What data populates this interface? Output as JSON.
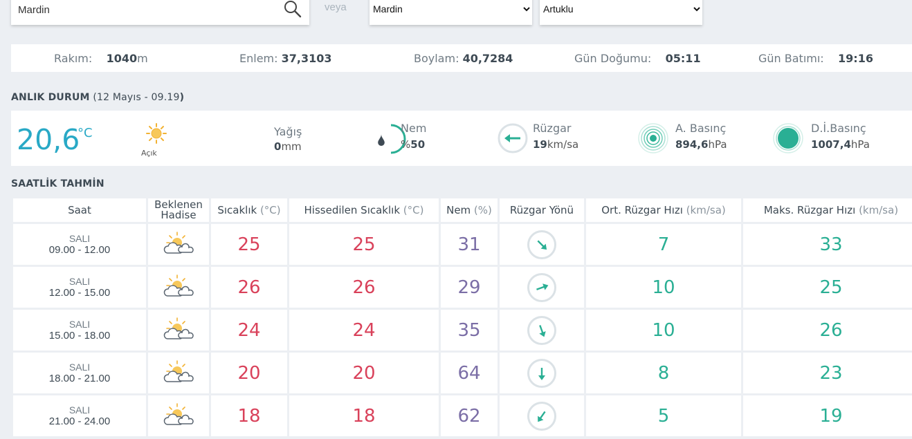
{
  "search": {
    "value": "Mardin"
  },
  "veya": "veya",
  "province_select": {
    "selected": "Mardin"
  },
  "district_select": {
    "selected": "Artuklu"
  },
  "info": {
    "altitude_label": "Rakım:",
    "altitude_value": "1040",
    "altitude_unit": "m",
    "latitude_label": "Enlem:",
    "latitude_value": "37,3103",
    "longitude_label": "Boylam:",
    "longitude_value": "40,7284",
    "sunrise_label": "Gün Doğumu:",
    "sunrise_value": "05:11",
    "sunset_label": "Gün Batımı:",
    "sunset_value": "19:16"
  },
  "current": {
    "title": "ANLIK DURUM",
    "subtitle_open": " (",
    "subtitle_date": "12 Mayıs - 09.19",
    "subtitle_close": ")",
    "temperature": "20,6",
    "temperature_unit": "°C",
    "condition": "Açık",
    "precip_label": "Yağış",
    "precip_value": "0",
    "precip_unit": "mm",
    "humidity_label": "Nem",
    "humidity_prefix": "%",
    "humidity_value": "50",
    "humidity_level": 50,
    "wind_label": "Rüzgar",
    "wind_value": "19",
    "wind_unit": "km/sa",
    "pressure_label": "A. Basınç",
    "pressure_value": "894,6",
    "pressure_unit": "hPa",
    "sea_pressure_label": "D.İ.Basınç",
    "sea_pressure_value": "1007,4",
    "sea_pressure_unit": "hPa"
  },
  "forecast": {
    "title": "SAATLİK TAHMİN",
    "headers": {
      "time": "Saat",
      "event_line1": "Beklenen",
      "event_line2": "Hadise",
      "temp": "Sıcaklık",
      "temp_unit": " (°C)",
      "feels": "Hissedilen Sıcaklık",
      "feels_unit": " (°C)",
      "humidity": "Nem",
      "humidity_unit": " (%)",
      "wind_dir": "Rüzgar Yönü",
      "wind_avg": "Ort. Rüzgar Hızı",
      "wind_avg_unit": " (km/sa)",
      "wind_max": "Maks. Rüzgar Hızı",
      "wind_max_unit": " (km/sa)"
    },
    "rows": [
      {
        "day": "SALI",
        "range": "09.00 - 12.00",
        "temp": "25",
        "feels": "25",
        "humidity": "31",
        "wind_deg": 135,
        "wind_avg": "7",
        "wind_max": "33",
        "icon": "partly-cloudy-icon"
      },
      {
        "day": "SALI",
        "range": "12.00 - 15.00",
        "temp": "26",
        "feels": "26",
        "humidity": "29",
        "wind_deg": 70,
        "wind_avg": "10",
        "wind_max": "25",
        "icon": "partly-cloudy-icon"
      },
      {
        "day": "SALI",
        "range": "15.00 - 18.00",
        "temp": "24",
        "feels": "24",
        "humidity": "35",
        "wind_deg": 160,
        "wind_avg": "10",
        "wind_max": "26",
        "icon": "partly-cloudy-icon"
      },
      {
        "day": "SALI",
        "range": "18.00 - 21.00",
        "temp": "20",
        "feels": "20",
        "humidity": "64",
        "wind_deg": 180,
        "wind_avg": "8",
        "wind_max": "23",
        "icon": "partly-cloudy-icon"
      },
      {
        "day": "SALI",
        "range": "21.00 - 24.00",
        "temp": "18",
        "feels": "18",
        "humidity": "62",
        "wind_deg": 215,
        "wind_avg": "5",
        "wind_max": "19",
        "icon": "partly-cloudy-icon"
      }
    ]
  },
  "colors": {
    "accent": "#29a9c6",
    "temp": "#d9415a",
    "humidity": "#7b6ea6",
    "wind": "#2aaf94"
  }
}
